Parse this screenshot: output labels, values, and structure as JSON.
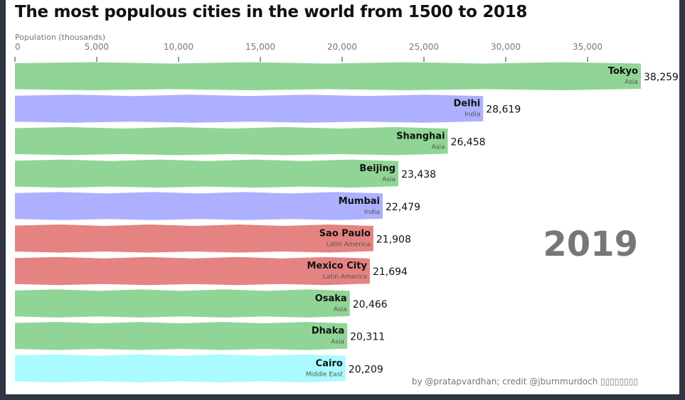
{
  "chart_data": {
    "type": "bar",
    "orientation": "horizontal",
    "title": "The most populous cities in the world from 1500 to 2018",
    "xlabel": "Population (thousands)",
    "xlim": [
      0,
      38259
    ],
    "xticks": [
      0,
      5000,
      10000,
      15000,
      20000,
      25000,
      30000,
      35000
    ],
    "xtick_labels": [
      "0",
      "5,000",
      "10,000",
      "15,000",
      "20,000",
      "25,000",
      "30,000",
      "35,000"
    ],
    "tick_position": "top",
    "year": "2019",
    "credit": "by @pratapvardhan; credit @jburnmurdoch ▯▯▯▯▯▯▯▯",
    "group_colors": {
      "Asia": "#90d595",
      "India": "#adb0ff",
      "Latin America": "#e48381",
      "Middle East": "#aafbff"
    },
    "bars": [
      {
        "name": "Tokyo",
        "group": "Asia",
        "value": 38259,
        "label": "38,259"
      },
      {
        "name": "Delhi",
        "group": "India",
        "value": 28619,
        "label": "28,619"
      },
      {
        "name": "Shanghai",
        "group": "Asia",
        "value": 26458,
        "label": "26,458"
      },
      {
        "name": "Beijing",
        "group": "Asia",
        "value": 23438,
        "label": "23,438"
      },
      {
        "name": "Mumbai",
        "group": "India",
        "value": 22479,
        "label": "22,479"
      },
      {
        "name": "Sao Paulo",
        "group": "Latin America",
        "value": 21908,
        "label": "21,908"
      },
      {
        "name": "Mexico City",
        "group": "Latin America",
        "value": 21694,
        "label": "21,694"
      },
      {
        "name": "Osaka",
        "group": "Asia",
        "value": 20466,
        "label": "20,466"
      },
      {
        "name": "Dhaka",
        "group": "Asia",
        "value": 20311,
        "label": "20,311"
      },
      {
        "name": "Cairo",
        "group": "Middle East",
        "value": 20209,
        "label": "20,209"
      }
    ]
  }
}
